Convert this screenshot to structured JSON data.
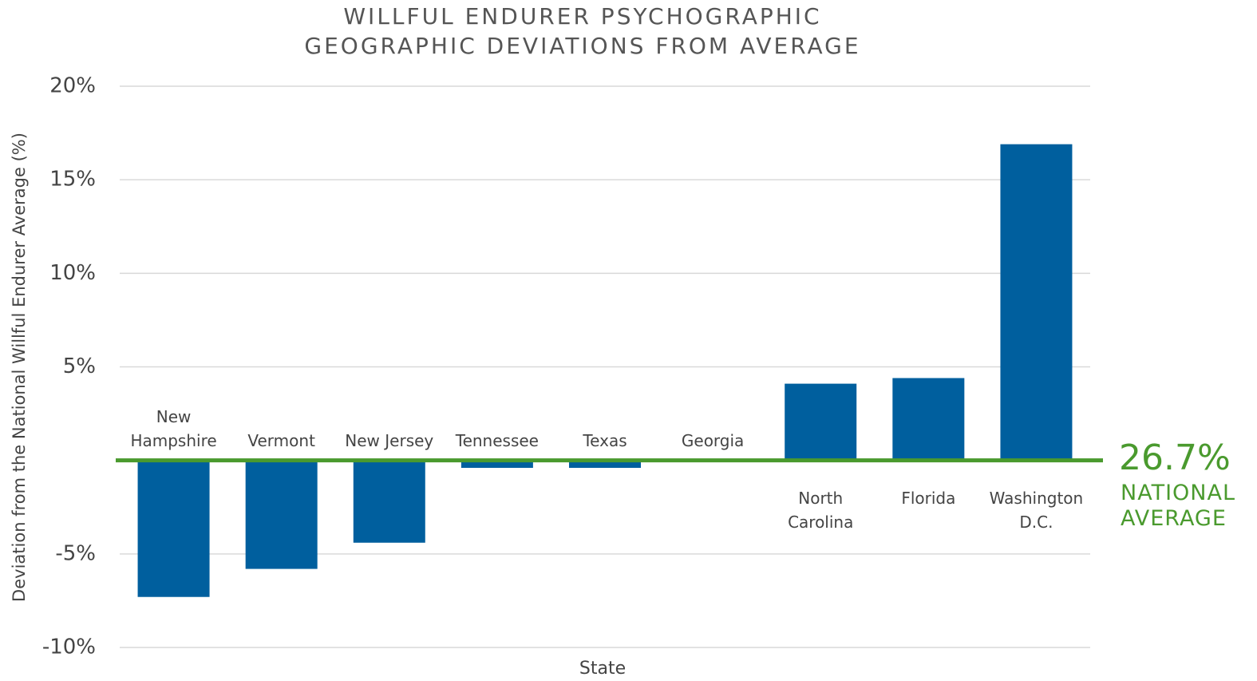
{
  "chart_data": {
    "type": "bar",
    "title": "WILLFUL ENDURER PSYCHOGRAPHIC GEOGRAPHIC DEVIATIONS FROM AVERAGE",
    "x_label": "State",
    "y_label": "Deviation from the National Willful Endurer Average (%)",
    "categories": [
      "New Hampshire",
      "Vermont",
      "New Jersey",
      "Tennessee",
      "Texas",
      "Georgia",
      "North Carolina",
      "Florida",
      "Washington D.C."
    ],
    "values": [
      -7.3,
      -5.8,
      -4.4,
      -0.4,
      -0.4,
      0,
      4.1,
      4.4,
      16.9
    ],
    "color": "#005f9e",
    "ylim": [
      -10,
      20
    ],
    "yticks": [
      {
        "value": -10,
        "label": "-10%"
      },
      {
        "value": -5,
        "label": "-5%"
      },
      {
        "value": 5,
        "label": "5%"
      },
      {
        "value": 10,
        "label": "10%"
      },
      {
        "value": 15,
        "label": "15%"
      },
      {
        "value": 20,
        "label": "20%"
      }
    ],
    "grid": true,
    "reference_line_color": "#4a9a2e",
    "annotation": {
      "value": "26.7%",
      "label": "NATIONAL AVERAGE"
    }
  }
}
